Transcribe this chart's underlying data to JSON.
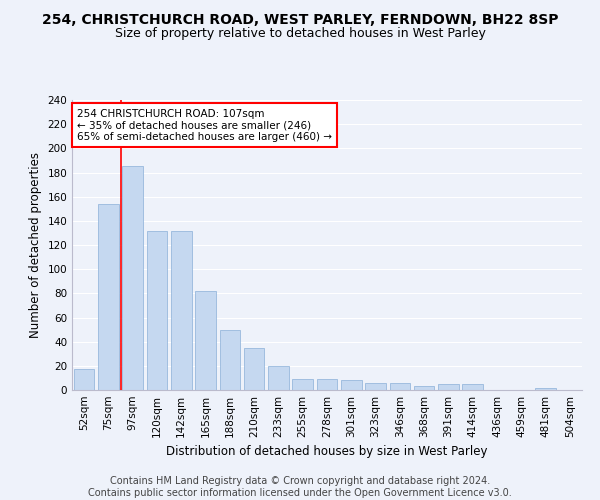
{
  "title": "254, CHRISTCHURCH ROAD, WEST PARLEY, FERNDOWN, BH22 8SP",
  "subtitle": "Size of property relative to detached houses in West Parley",
  "xlabel": "Distribution of detached houses by size in West Parley",
  "ylabel": "Number of detached properties",
  "bar_color": "#c5d8f0",
  "bar_edge_color": "#8ab0d8",
  "background_color": "#eef2fa",
  "grid_color": "#ffffff",
  "annotation_line_color": "red",
  "annotation_text": "254 CHRISTCHURCH ROAD: 107sqm\n← 35% of detached houses are smaller (246)\n65% of semi-detached houses are larger (460) →",
  "annotation_box_color": "white",
  "annotation_box_edge": "red",
  "categories": [
    "52sqm",
    "75sqm",
    "97sqm",
    "120sqm",
    "142sqm",
    "165sqm",
    "188sqm",
    "210sqm",
    "233sqm",
    "255sqm",
    "278sqm",
    "301sqm",
    "323sqm",
    "346sqm",
    "368sqm",
    "391sqm",
    "414sqm",
    "436sqm",
    "459sqm",
    "481sqm",
    "504sqm"
  ],
  "values": [
    17,
    154,
    185,
    132,
    132,
    82,
    50,
    35,
    20,
    9,
    9,
    8,
    6,
    6,
    3,
    5,
    5,
    0,
    0,
    2,
    0
  ],
  "ylim": [
    0,
    240
  ],
  "yticks": [
    0,
    20,
    40,
    60,
    80,
    100,
    120,
    140,
    160,
    180,
    200,
    220,
    240
  ],
  "footer": "Contains HM Land Registry data © Crown copyright and database right 2024.\nContains public sector information licensed under the Open Government Licence v3.0.",
  "title_fontsize": 10,
  "subtitle_fontsize": 9,
  "xlabel_fontsize": 8.5,
  "ylabel_fontsize": 8.5,
  "footer_fontsize": 7,
  "tick_fontsize": 7.5,
  "annot_fontsize": 7.5
}
